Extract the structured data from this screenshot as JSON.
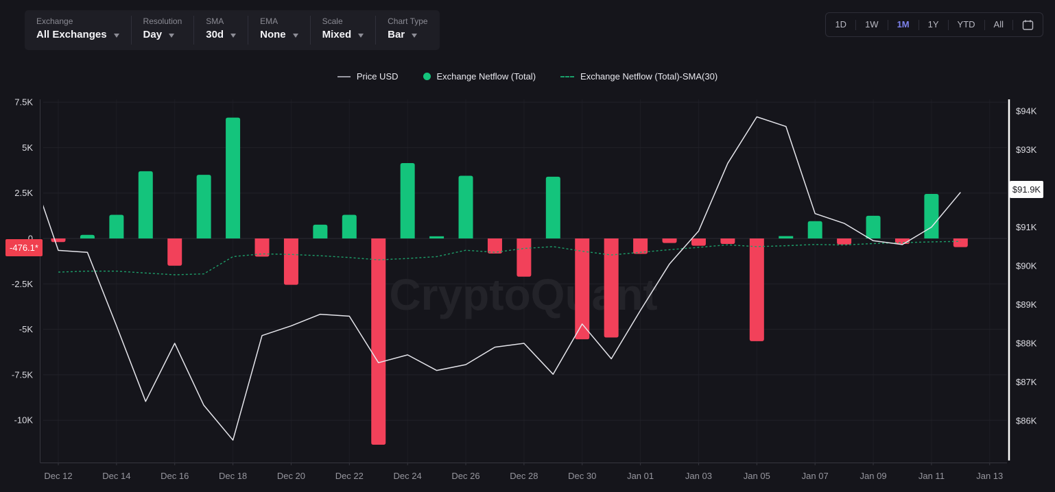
{
  "toolbar": {
    "groups": [
      {
        "label": "Exchange",
        "value": "All Exchanges"
      },
      {
        "label": "Resolution",
        "value": "Day"
      },
      {
        "label": "SMA",
        "value": "30d"
      },
      {
        "label": "EMA",
        "value": "None"
      },
      {
        "label": "Scale",
        "value": "Mixed"
      },
      {
        "label": "Chart Type",
        "value": "Bar"
      }
    ]
  },
  "time_range": {
    "options": [
      "1D",
      "1W",
      "1M",
      "1Y",
      "YTD",
      "All"
    ],
    "selected": "1M"
  },
  "legend": {
    "items": [
      {
        "label": "Price USD",
        "marker": "line-swatch",
        "color": "#9b9ba4"
      },
      {
        "label": "Exchange Netflow (Total)",
        "marker": "dot-swatch",
        "color": "#14c47c"
      },
      {
        "label": "Exchange Netflow (Total)-SMA(30)",
        "marker": "dashed-swatch",
        "color": "#1aa06b"
      }
    ]
  },
  "watermark": "CryptoQuant",
  "badges": {
    "netflow_current": "-476.1*",
    "price_current": "$91.9K"
  },
  "colors": {
    "background": "#15151b",
    "panel": "#1e1e25",
    "green": "#14c47c",
    "red": "#f2415a",
    "sma_green": "#1d9f6a",
    "price_line": "#e6e6ec",
    "accent_blue": "#7d82ec",
    "grid_h": "#222229",
    "grid_v": "#1d1d24",
    "axis": "#36363f",
    "right_axis": "#ffffff",
    "label_bright": "#dcdce2",
    "label_dim": "#97979f",
    "watermark_color": "#232329"
  },
  "chart_data": {
    "type": "bar",
    "title": "",
    "xlabel": "",
    "ylabel_left": "Exchange Netflow (Total)",
    "ylabel_right": "Price USD",
    "grid": true,
    "legend_position": "top-center",
    "categories": [
      "Dec 12",
      "Dec 13",
      "Dec 14",
      "Dec 15",
      "Dec 16",
      "Dec 17",
      "Dec 18",
      "Dec 19",
      "Dec 20",
      "Dec 21",
      "Dec 22",
      "Dec 23",
      "Dec 24",
      "Dec 25",
      "Dec 26",
      "Dec 27",
      "Dec 28",
      "Dec 29",
      "Dec 30",
      "Dec 31",
      "Jan 01",
      "Jan 02",
      "Jan 03",
      "Jan 04",
      "Jan 05",
      "Jan 06",
      "Jan 07",
      "Jan 08",
      "Jan 09",
      "Jan 10",
      "Jan 11",
      "Jan 12"
    ],
    "series": [
      {
        "name": "Exchange Netflow (Total)",
        "type": "bar",
        "axis": "left",
        "values": [
          -200,
          200,
          1300,
          3700,
          -1500,
          3500,
          6650,
          -1000,
          -2550,
          760,
          1300,
          -11350,
          4150,
          120,
          3450,
          -830,
          -2100,
          3400,
          -5550,
          -5450,
          -850,
          -250,
          -400,
          -300,
          -5650,
          130,
          950,
          -330,
          1250,
          -300,
          2450,
          -476.1
        ]
      },
      {
        "name": "Exchange Netflow (Total)-SMA(30)",
        "type": "line",
        "style": "dashed",
        "axis": "left",
        "values": [
          -1850,
          -1800,
          -1800,
          -1900,
          -2000,
          -1950,
          -1000,
          -850,
          -880,
          -950,
          -1050,
          -1175,
          -1100,
          -1000,
          -650,
          -760,
          -550,
          -450,
          -700,
          -910,
          -760,
          -620,
          -490,
          -350,
          -450,
          -400,
          -330,
          -360,
          -280,
          -230,
          -190,
          -160
        ]
      },
      {
        "name": "Price USD",
        "type": "line",
        "axis": "right",
        "unit": "USD thousands",
        "lead_in_value": 92.6,
        "values": [
          90.4,
          90.35,
          88.45,
          86.5,
          88.0,
          86.4,
          85.5,
          88.2,
          88.45,
          88.75,
          88.7,
          87.5,
          87.7,
          87.3,
          87.45,
          87.9,
          88.0,
          87.2,
          88.5,
          87.6,
          88.85,
          90.05,
          90.9,
          92.65,
          93.85,
          93.6,
          91.35,
          91.1,
          90.65,
          90.55,
          91.0,
          91.9
        ]
      }
    ],
    "left_axis": {
      "range": [
        -12400,
        8200
      ],
      "ticks": [
        {
          "label": "7.5K",
          "value": 7500
        },
        {
          "label": "5K",
          "value": 5000
        },
        {
          "label": "2.5K",
          "value": 2500
        },
        {
          "label": "0",
          "value": 0
        },
        {
          "label": "-2.5K",
          "value": -2500
        },
        {
          "label": "-5K",
          "value": -5000
        },
        {
          "label": "-7.5K",
          "value": -7500
        },
        {
          "label": "-10K",
          "value": -10000
        }
      ]
    },
    "right_axis": {
      "range": [
        85.0,
        94.3
      ],
      "ticks": [
        {
          "label": "$94K",
          "value": 94
        },
        {
          "label": "$93K",
          "value": 93
        },
        {
          "label": "$91K",
          "value": 91
        },
        {
          "label": "$90K",
          "value": 90
        },
        {
          "label": "$89K",
          "value": 89
        },
        {
          "label": "$88K",
          "value": 88
        },
        {
          "label": "$87K",
          "value": 87
        },
        {
          "label": "$86K",
          "value": 86
        }
      ]
    },
    "x_ticks": [
      {
        "label": "Dec 12",
        "day": 0
      },
      {
        "label": "Dec 14",
        "day": 2
      },
      {
        "label": "Dec 16",
        "day": 4
      },
      {
        "label": "Dec 18",
        "day": 6
      },
      {
        "label": "Dec 20",
        "day": 8
      },
      {
        "label": "Dec 22",
        "day": 10
      },
      {
        "label": "Dec 24",
        "day": 12
      },
      {
        "label": "Dec 26",
        "day": 14
      },
      {
        "label": "Dec 28",
        "day": 16
      },
      {
        "label": "Dec 30",
        "day": 18
      },
      {
        "label": "Jan 01",
        "day": 20
      },
      {
        "label": "Jan 03",
        "day": 22
      },
      {
        "label": "Jan 05",
        "day": 24
      },
      {
        "label": "Jan 07",
        "day": 26
      },
      {
        "label": "Jan 09",
        "day": 28
      },
      {
        "label": "Jan 11",
        "day": 30
      },
      {
        "label": "Jan 13",
        "day": 32
      }
    ]
  }
}
